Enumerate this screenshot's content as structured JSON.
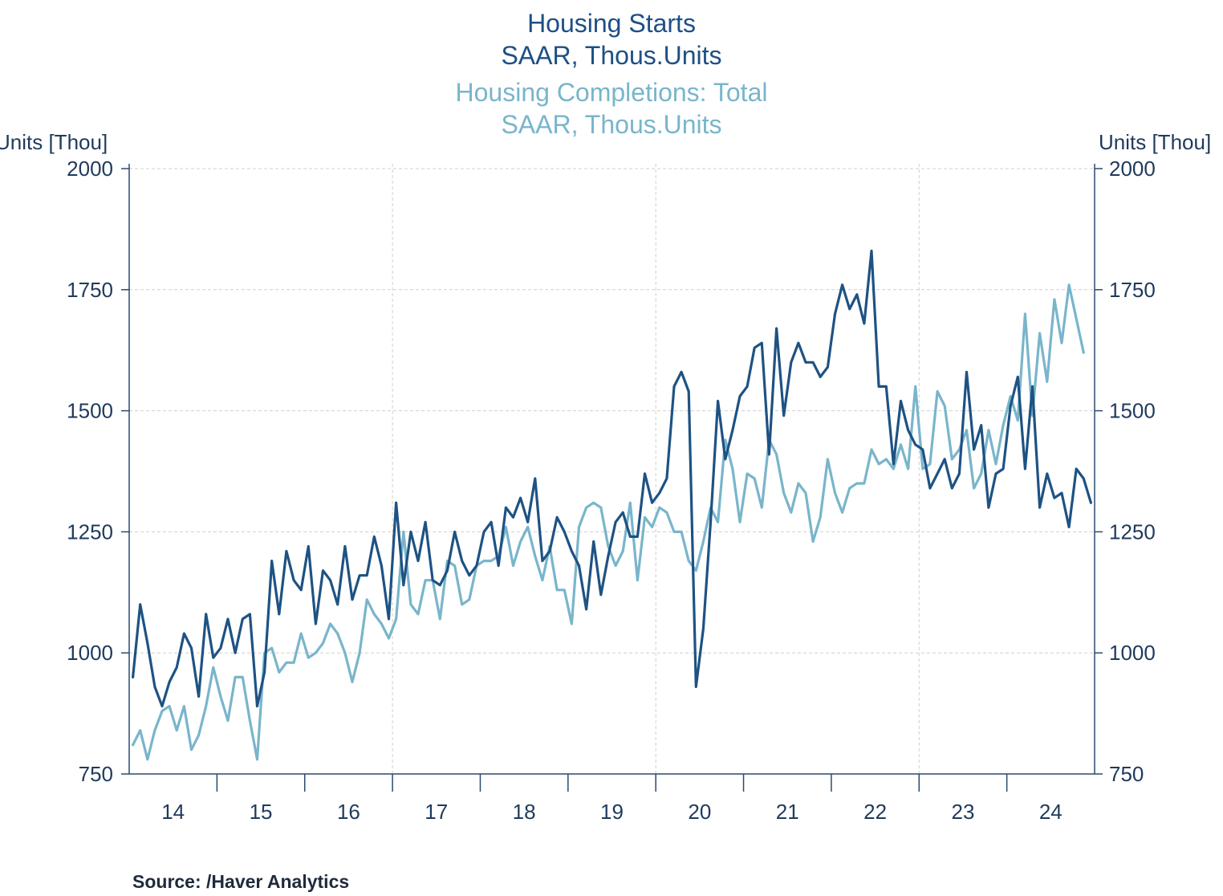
{
  "colors": {
    "starts": "#1e5283",
    "completions": "#79b5cb",
    "title_dark": "#1e4f86",
    "title_light": "#79b5cb"
  },
  "titles": {
    "starts_title": "Housing Starts",
    "starts_units": "SAAR, Thous.Units",
    "completions_title": "Housing Completions: Total",
    "completions_units": "SAAR, Thous.Units"
  },
  "axis_unit_left": "Units [Thou]",
  "axis_unit_right": "Units [Thou]",
  "source": "Source:  /Haver Analytics",
  "chart_data": {
    "type": "line",
    "x_start": "2014-01",
    "x_frequency": "monthly",
    "xlim": [
      "2014-01",
      "2024-12"
    ],
    "ylim": [
      750,
      2000
    ],
    "y_ticks": [
      750,
      1000,
      1250,
      1500,
      1750,
      2000
    ],
    "y_tick_labels": [
      "750",
      "1000",
      "1250",
      "1500",
      "1750",
      "2000"
    ],
    "x_tick_labels": [
      "14",
      "15",
      "16",
      "17",
      "18",
      "19",
      "20",
      "21",
      "22",
      "23",
      "24"
    ],
    "grid": true,
    "series": [
      {
        "name": "Housing Starts",
        "axis": "left",
        "color": "#1e5283",
        "values": [
          950,
          1100,
          1020,
          930,
          890,
          940,
          970,
          1040,
          1010,
          910,
          1080,
          990,
          1010,
          1070,
          1000,
          1070,
          1080,
          890,
          960,
          1190,
          1080,
          1210,
          1150,
          1130,
          1220,
          1060,
          1170,
          1150,
          1100,
          1220,
          1110,
          1160,
          1160,
          1240,
          1180,
          1070,
          1310,
          1140,
          1250,
          1190,
          1270,
          1150,
          1140,
          1170,
          1250,
          1190,
          1160,
          1180,
          1250,
          1270,
          1180,
          1300,
          1280,
          1320,
          1270,
          1360,
          1190,
          1210,
          1280,
          1250,
          1210,
          1180,
          1090,
          1230,
          1120,
          1200,
          1270,
          1290,
          1240,
          1240,
          1370,
          1310,
          1330,
          1360,
          1550,
          1580,
          1540,
          930,
          1050,
          1270,
          1520,
          1400,
          1460,
          1530,
          1550,
          1630,
          1640,
          1410,
          1670,
          1490,
          1600,
          1640,
          1600,
          1600,
          1570,
          1590,
          1700,
          1760,
          1710,
          1740,
          1680,
          1830,
          1550,
          1550,
          1390,
          1520,
          1460,
          1430,
          1420,
          1340,
          1370,
          1400,
          1340,
          1370,
          1580,
          1420,
          1470,
          1300,
          1370,
          1380,
          1510,
          1570,
          1380,
          1550,
          1300,
          1370,
          1320,
          1330,
          1260,
          1380,
          1360,
          1310
        ]
      },
      {
        "name": "Housing Completions: Total",
        "axis": "right",
        "color": "#79b5cb",
        "values": [
          810,
          840,
          780,
          840,
          880,
          890,
          840,
          890,
          800,
          830,
          890,
          970,
          910,
          860,
          950,
          950,
          860,
          780,
          1000,
          1010,
          960,
          980,
          980,
          1040,
          990,
          1000,
          1020,
          1060,
          1040,
          1000,
          940,
          1000,
          1110,
          1080,
          1060,
          1030,
          1070,
          1250,
          1100,
          1080,
          1150,
          1150,
          1070,
          1190,
          1180,
          1100,
          1110,
          1180,
          1190,
          1190,
          1200,
          1260,
          1180,
          1230,
          1260,
          1200,
          1150,
          1220,
          1130,
          1130,
          1060,
          1260,
          1300,
          1310,
          1300,
          1220,
          1180,
          1210,
          1310,
          1150,
          1280,
          1260,
          1300,
          1290,
          1250,
          1250,
          1190,
          1170,
          1230,
          1300,
          1270,
          1440,
          1380,
          1270,
          1370,
          1360,
          1300,
          1440,
          1410,
          1330,
          1290,
          1350,
          1330,
          1230,
          1280,
          1400,
          1330,
          1290,
          1340,
          1350,
          1350,
          1420,
          1390,
          1400,
          1380,
          1430,
          1380,
          1550,
          1380,
          1390,
          1540,
          1510,
          1400,
          1420,
          1460,
          1340,
          1370,
          1460,
          1390,
          1470,
          1530,
          1480,
          1700,
          1490,
          1660,
          1560,
          1730,
          1640,
          1760,
          1690,
          1620
        ]
      }
    ]
  }
}
